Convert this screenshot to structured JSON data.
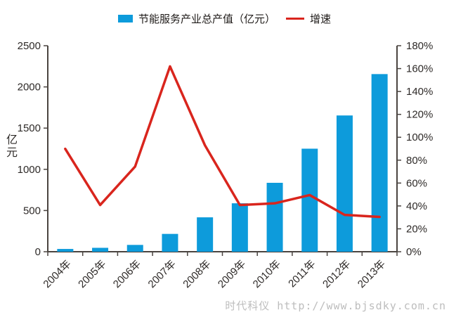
{
  "legend": [
    {
      "label": "节能服务产业总产值（亿元）",
      "marker": "bar-swatch-icon"
    },
    {
      "label": "增速",
      "marker": "line-swatch-icon"
    }
  ],
  "colors": {
    "bar": "#0d9bdb",
    "line": "#d9251d",
    "axis": "#4a4440",
    "tick_text": "#2e2a28",
    "watermark": "#bdbdbd",
    "background": "#ffffff"
  },
  "watermark": "时代科仪 http://www.bjsdky.com.cn",
  "chart_data": {
    "type": "bar",
    "subtype": "bar+line combo, dual y-axes",
    "title": "",
    "categories": [
      "2004年",
      "2005年",
      "2006年",
      "2007年",
      "2008年",
      "2009年",
      "2010年",
      "2011年",
      "2012年",
      "2013年"
    ],
    "series": [
      {
        "name": "节能服务产业总产值（亿元）",
        "type": "bar",
        "axis": "left",
        "values": [
          33.6,
          47.3,
          82.6,
          216.2,
          417.3,
          587.7,
          836.3,
          1250.3,
          1653.4,
          2155.6
        ]
      },
      {
        "name": "增速",
        "type": "line",
        "axis": "right",
        "values": [
          89.9,
          40.8,
          74.4,
          161.9,
          93.0,
          40.8,
          42.3,
          49.5,
          32.2,
          30.4
        ]
      }
    ],
    "left_axis": {
      "label": "亿元",
      "min": 0,
      "max": 2500,
      "step": 500,
      "suffix": ""
    },
    "right_axis": {
      "label": "",
      "min": 0,
      "max": 180,
      "step": 20,
      "suffix": "%"
    },
    "xlabel": "",
    "x_tick_rotation": -45,
    "grid": false,
    "legend_position": "top"
  }
}
